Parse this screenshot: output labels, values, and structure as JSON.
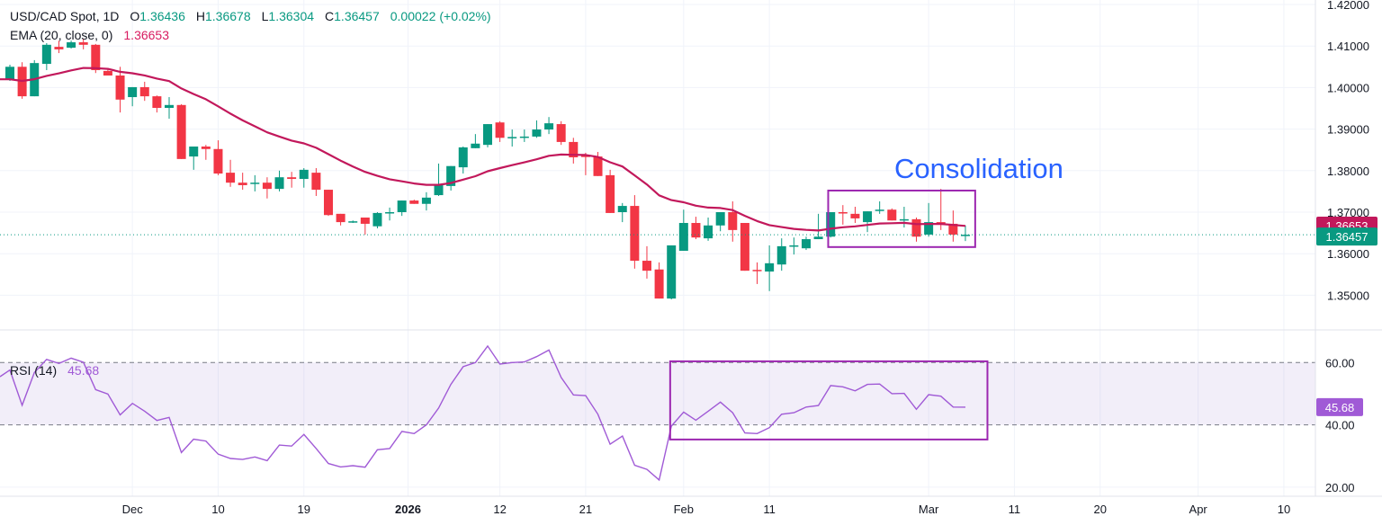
{
  "header": {
    "symbol": "USD/CAD Spot, 1D",
    "o_label": "O",
    "o_value": "1.36436",
    "h_label": "H",
    "h_value": "1.36678",
    "l_label": "L",
    "l_value": "1.36304",
    "c_label": "C",
    "c_value": "1.36457",
    "change": "0.00022",
    "change_pct": "(+0.02%)"
  },
  "ema_legend": {
    "label": "EMA (20, close, 0)",
    "value": "1.36653"
  },
  "rsi_legend": {
    "label": "RSI (14)",
    "value": "45.68"
  },
  "annotation": "Consolidation",
  "colors": {
    "up": "#089981",
    "down": "#f23645",
    "ema": "#c2185b",
    "rsi": "#a05ad6",
    "box": "#9c27b0",
    "annotation": "#2962ff"
  },
  "chart_data": [
    {
      "type": "candlestick",
      "title": "USD/CAD Spot, 1D",
      "ylim": [
        1.3425,
        1.4215
      ],
      "y_ticks": [
        "1.42000",
        "1.41000",
        "1.40000",
        "1.39000",
        "1.38000",
        "1.37000",
        "1.36000",
        "1.35000"
      ],
      "y_tick_values": [
        1.42,
        1.41,
        1.4,
        1.39,
        1.38,
        1.37,
        1.36,
        1.35
      ],
      "x_ticks": [
        {
          "label": "Dec",
          "bar": 10
        },
        {
          "label": "10",
          "bar": 17
        },
        {
          "label": "19",
          "bar": 24
        },
        {
          "label": "2026",
          "bar": 32.5,
          "bold": true
        },
        {
          "label": "12",
          "bar": 40
        },
        {
          "label": "21",
          "bar": 47
        },
        {
          "label": "Feb",
          "bar": 55
        },
        {
          "label": "11",
          "bar": 62
        },
        {
          "label": "Mar",
          "bar": 75
        },
        {
          "label": "11",
          "bar": 82
        },
        {
          "label": "20",
          "bar": 89
        },
        {
          "label": "Apr",
          "bar": 97
        },
        {
          "label": "10",
          "bar": 104
        }
      ],
      "ohlc": [
        [
          1.402,
          1.4055,
          1.4016,
          1.405
        ],
        [
          1.405,
          1.4061,
          1.3973,
          1.3979
        ],
        [
          1.3979,
          1.4066,
          1.3979,
          1.4059
        ],
        [
          1.4057,
          1.4107,
          1.4042,
          1.4103
        ],
        [
          1.4098,
          1.4113,
          1.4083,
          1.4092
        ],
        [
          1.4096,
          1.4113,
          1.4094,
          1.4109
        ],
        [
          1.4109,
          1.4118,
          1.4092,
          1.4103
        ],
        [
          1.4103,
          1.4105,
          1.4035,
          1.4042
        ],
        [
          1.404,
          1.4044,
          1.4029,
          1.4029
        ],
        [
          1.4029,
          1.405,
          1.394,
          1.3971
        ],
        [
          1.3977,
          1.4001,
          1.3955,
          1.4001
        ],
        [
          1.4001,
          1.4014,
          1.3968,
          1.3979
        ],
        [
          1.3979,
          1.3981,
          1.394,
          1.3951
        ],
        [
          1.3951,
          1.3977,
          1.3925,
          1.3958
        ],
        [
          1.3958,
          1.396,
          1.3828,
          1.3828
        ],
        [
          1.3834,
          1.3858,
          1.3802,
          1.3858
        ],
        [
          1.3858,
          1.3862,
          1.3826,
          1.3852
        ],
        [
          1.3852,
          1.3873,
          1.3789,
          1.3793
        ],
        [
          1.3795,
          1.3826,
          1.3761,
          1.3771
        ],
        [
          1.3771,
          1.3795,
          1.3754,
          1.3765
        ],
        [
          1.3769,
          1.3789,
          1.375,
          1.3771
        ],
        [
          1.3771,
          1.3784,
          1.3733,
          1.3756
        ],
        [
          1.3756,
          1.38,
          1.375,
          1.3784
        ],
        [
          1.3784,
          1.3797,
          1.3759,
          1.378
        ],
        [
          1.378,
          1.3806,
          1.3759,
          1.3802
        ],
        [
          1.3795,
          1.3806,
          1.3739,
          1.3754
        ],
        [
          1.3754,
          1.3754,
          1.3691,
          1.3693
        ],
        [
          1.3696,
          1.3696,
          1.3668,
          1.3676
        ],
        [
          1.3676,
          1.368,
          1.3674,
          1.3678
        ],
        [
          1.3687,
          1.3687,
          1.3646,
          1.3672
        ],
        [
          1.3666,
          1.37,
          1.3661,
          1.3698
        ],
        [
          1.3698,
          1.3711,
          1.368,
          1.37
        ],
        [
          1.37,
          1.3728,
          1.3691,
          1.3728
        ],
        [
          1.3728,
          1.373,
          1.372,
          1.372
        ],
        [
          1.372,
          1.3748,
          1.3704,
          1.3735
        ],
        [
          1.3741,
          1.3817,
          1.3739,
          1.3765
        ],
        [
          1.3763,
          1.3811,
          1.3752,
          1.3811
        ],
        [
          1.3808,
          1.3858,
          1.3793,
          1.3856
        ],
        [
          1.3854,
          1.3888,
          1.3854,
          1.3865
        ],
        [
          1.3862,
          1.3912,
          1.3856,
          1.3912
        ],
        [
          1.3916,
          1.3919,
          1.3869,
          1.3879
        ],
        [
          1.3879,
          1.3899,
          1.3858,
          1.3881
        ],
        [
          1.3881,
          1.3899,
          1.3869,
          1.3882
        ],
        [
          1.3882,
          1.3921,
          1.3879,
          1.3899
        ],
        [
          1.3899,
          1.3929,
          1.3888,
          1.3914
        ],
        [
          1.3912,
          1.3919,
          1.3862,
          1.3869
        ],
        [
          1.3869,
          1.3879,
          1.3817,
          1.3832
        ],
        [
          1.3836,
          1.3843,
          1.3789,
          1.3834
        ],
        [
          1.3834,
          1.3845,
          1.3787,
          1.3787
        ],
        [
          1.3789,
          1.3802,
          1.3698,
          1.3698
        ],
        [
          1.37,
          1.3722,
          1.3676,
          1.3715
        ],
        [
          1.3715,
          1.3741,
          1.3564,
          1.3583
        ],
        [
          1.3583,
          1.3618,
          1.354,
          1.3559
        ],
        [
          1.3562,
          1.3579,
          1.3492,
          1.3492
        ],
        [
          1.3492,
          1.362,
          1.349,
          1.362
        ],
        [
          1.3607,
          1.3706,
          1.3607,
          1.3674
        ],
        [
          1.3674,
          1.3689,
          1.3635,
          1.3639
        ],
        [
          1.3637,
          1.3687,
          1.3631,
          1.3668
        ],
        [
          1.3668,
          1.37,
          1.3654,
          1.37
        ],
        [
          1.37,
          1.3726,
          1.3629,
          1.3657
        ],
        [
          1.3674,
          1.3674,
          1.3559,
          1.3559
        ],
        [
          1.3561,
          1.3579,
          1.3527,
          1.3559
        ],
        [
          1.3557,
          1.362,
          1.351,
          1.3577
        ],
        [
          1.3574,
          1.3637,
          1.3559,
          1.3618
        ],
        [
          1.3618,
          1.3639,
          1.3598,
          1.362
        ],
        [
          1.3613,
          1.3641,
          1.3609,
          1.3635
        ],
        [
          1.3635,
          1.3696,
          1.3635,
          1.3641
        ],
        [
          1.3641,
          1.37,
          1.3639,
          1.37
        ],
        [
          1.37,
          1.3717,
          1.367,
          1.3698
        ],
        [
          1.3696,
          1.3713,
          1.3674,
          1.3685
        ],
        [
          1.3676,
          1.3702,
          1.3652,
          1.3702
        ],
        [
          1.3704,
          1.3726,
          1.3696,
          1.3706
        ],
        [
          1.3706,
          1.3709,
          1.368,
          1.368
        ],
        [
          1.3681,
          1.3713,
          1.3663,
          1.3683
        ],
        [
          1.3683,
          1.3687,
          1.3629,
          1.3641
        ],
        [
          1.3646,
          1.3722,
          1.3641,
          1.3676
        ],
        [
          1.3676,
          1.3756,
          1.3657,
          1.3672
        ],
        [
          1.3672,
          1.3704,
          1.3629,
          1.3646
        ],
        [
          1.36436,
          1.36678,
          1.36304,
          1.36457
        ]
      ],
      "ema": {
        "period": 20,
        "seed": 1.402,
        "last": 1.36653,
        "last_label": "1.36653"
      },
      "last_price": 1.36457,
      "last_price_label": "1.36457",
      "consolidation_box": {
        "bar_start": 66.8,
        "bar_end": 78.8,
        "price_high": 1.3752,
        "price_low": 1.3616
      }
    },
    {
      "type": "line",
      "title": "RSI (14)",
      "ylim": [
        16,
        68
      ],
      "y_ticks": [
        "60.00",
        "40.00",
        "20.00"
      ],
      "y_tick_values": [
        60,
        40,
        20
      ],
      "band": [
        40,
        60
      ],
      "values": [
        57.6,
        46.3,
        56.8,
        61.0,
        59.7,
        61.4,
        60.1,
        51.3,
        49.9,
        43.2,
        46.9,
        44.4,
        41.4,
        42.4,
        31.1,
        35.4,
        34.8,
        30.6,
        29.2,
        28.9,
        29.7,
        28.5,
        33.5,
        33.2,
        36.9,
        32.4,
        27.6,
        26.5,
        26.9,
        26.4,
        32.0,
        32.4,
        37.9,
        37.2,
        40.0,
        45.4,
        53.0,
        58.7,
        60.0,
        65.3,
        59.5,
        60.0,
        60.2,
        61.9,
        64.0,
        55.2,
        49.6,
        49.4,
        43.4,
        33.8,
        36.4,
        27.0,
        25.7,
        22.3,
        39.6,
        44.1,
        41.5,
        44.4,
        47.3,
        43.9,
        37.4,
        37.2,
        39.1,
        43.4,
        43.9,
        45.7,
        46.2,
        52.6,
        52.2,
        50.9,
        53.0,
        53.1,
        50.0,
        50.1,
        45.0,
        49.7,
        49.2,
        45.7,
        45.68
      ],
      "last_label": "45.68",
      "consolidation_box": {
        "bar_start": 53.9,
        "bar_end": 79.8,
        "rsi_high": 60.4,
        "rsi_low": 35.3
      }
    }
  ]
}
